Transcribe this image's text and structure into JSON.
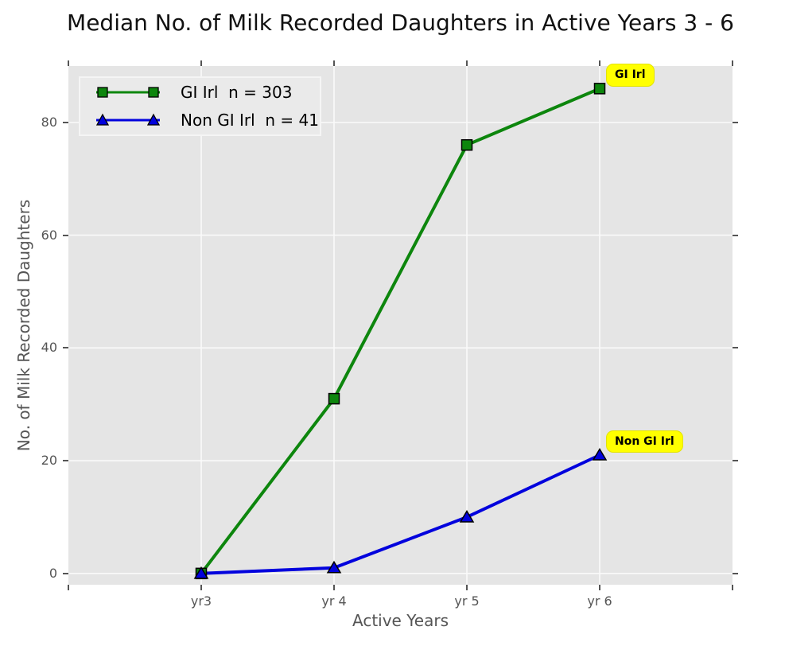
{
  "chart_data": {
    "type": "line",
    "title": "Median No. of Milk Recorded Daughters in Active Years 3 - 6",
    "xlabel": "Active Years",
    "ylabel": "No. of Milk Recorded Daughters",
    "categories": [
      "yr3",
      "yr 4",
      "yr 5",
      "yr 6"
    ],
    "series": [
      {
        "name": "GI Irl",
        "label": "GI Irl  n = 303",
        "values": [
          0,
          31,
          76,
          86
        ],
        "color": "#0d860d",
        "marker": "square",
        "end_label": "GI Irl"
      },
      {
        "name": "Non GI Irl",
        "label": "Non GI Irl  n = 41",
        "values": [
          0,
          1,
          10,
          21
        ],
        "color": "#0202dd",
        "marker": "triangle",
        "end_label": "Non GI Irl"
      }
    ],
    "yticks": [
      0,
      20,
      40,
      60,
      80
    ],
    "ytick_labels": [
      "0",
      "20",
      "40",
      "60",
      "80"
    ],
    "ylim": [
      -2,
      90
    ],
    "grid": true,
    "legend_position": "upper-left",
    "plot_bg": "#e5e5e5",
    "gridline_color": "#fafafa",
    "annotation_bg": "#ffff00",
    "tick_color": "#555555"
  }
}
